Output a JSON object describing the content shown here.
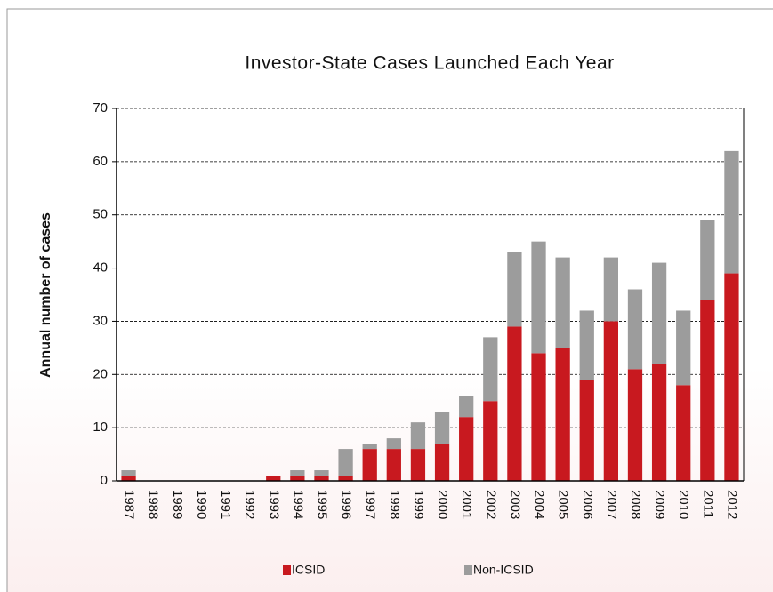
{
  "chart_data": {
    "type": "stacked_bar",
    "title": "Investor-State Cases Launched Each Year",
    "y_label": "Annual number of cases",
    "categories": [
      "1987",
      "1988",
      "1989",
      "1990",
      "1991",
      "1992",
      "1993",
      "1994",
      "1995",
      "1996",
      "1997",
      "1998",
      "1999",
      "2000",
      "2001",
      "2002",
      "2003",
      "2004",
      "2005",
      "2006",
      "2007",
      "2008",
      "2009",
      "2010",
      "2011",
      "2012"
    ],
    "series": [
      {
        "name": "ICSID",
        "color": "#c8191f",
        "values": [
          1,
          0,
          0,
          0,
          0,
          0,
          1,
          1,
          1,
          1,
          6,
          6,
          6,
          7,
          12,
          15,
          29,
          24,
          25,
          19,
          30,
          21,
          22,
          18,
          34,
          39
        ]
      },
      {
        "name": "Non-ICSID",
        "color": "#9c9c9c",
        "values": [
          1,
          0,
          0,
          0,
          0,
          0,
          0,
          1,
          1,
          5,
          1,
          2,
          5,
          6,
          4,
          12,
          14,
          21,
          17,
          13,
          12,
          15,
          19,
          14,
          15,
          23
        ]
      }
    ],
    "ylim": [
      0,
      70
    ],
    "yticks": [
      0,
      10,
      20,
      30,
      40,
      50,
      60,
      70
    ],
    "grid": true
  }
}
